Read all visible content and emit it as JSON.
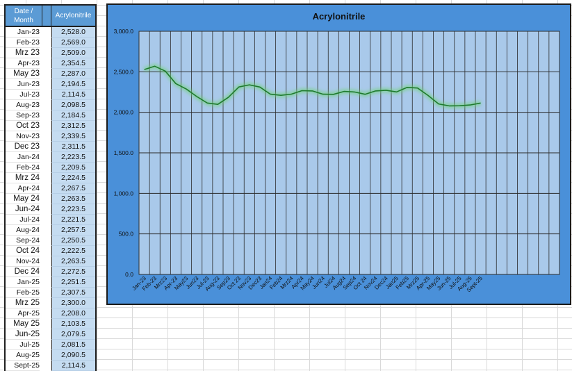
{
  "table": {
    "header_date": "Date /\nMonth",
    "header_value": "Acrylonitrile",
    "rows": [
      {
        "month": "Jan-23",
        "value": "2,528.0"
      },
      {
        "month": "Feb-23",
        "value": "2,569.0"
      },
      {
        "month": "Mrz 23",
        "value": "2,509.0"
      },
      {
        "month": "Apr-23",
        "value": "2,354.5"
      },
      {
        "month": "May 23",
        "value": "2,287.0"
      },
      {
        "month": "Jun-23",
        "value": "2,194.5"
      },
      {
        "month": "Jul-23",
        "value": "2,114.5"
      },
      {
        "month": "Aug-23",
        "value": "2,098.5"
      },
      {
        "month": "Sep-23",
        "value": "2,184.5"
      },
      {
        "month": "Oct 23",
        "value": "2,312.5"
      },
      {
        "month": "Nov-23",
        "value": "2,339.5"
      },
      {
        "month": "Dec 23",
        "value": "2,311.5"
      },
      {
        "month": "Jan-24",
        "value": "2,223.5"
      },
      {
        "month": "Feb-24",
        "value": "2,209.5"
      },
      {
        "month": "Mrz 24",
        "value": "2,224.5"
      },
      {
        "month": "Apr-24",
        "value": "2,267.5"
      },
      {
        "month": "May 24",
        "value": "2,263.5"
      },
      {
        "month": "Jun-24",
        "value": "2,223.5"
      },
      {
        "month": "Jul-24",
        "value": "2,221.5"
      },
      {
        "month": "Aug-24",
        "value": "2,257.5"
      },
      {
        "month": "Sep-24",
        "value": "2,250.5"
      },
      {
        "month": "Oct 24",
        "value": "2,222.5"
      },
      {
        "month": "Nov-24",
        "value": "2,263.5"
      },
      {
        "month": "Dec 24",
        "value": "2,272.5"
      },
      {
        "month": "Jan-25",
        "value": "2,251.5"
      },
      {
        "month": "Feb-25",
        "value": "2,307.5"
      },
      {
        "month": "Mrz 25",
        "value": "2,300.0"
      },
      {
        "month": "Apr-25",
        "value": "2,208.0"
      },
      {
        "month": "May 25",
        "value": "2,103.5"
      },
      {
        "month": "Jun-25",
        "value": "2,079.5"
      },
      {
        "month": "Jul-25",
        "value": "2,081.5"
      },
      {
        "month": "Aug-25",
        "value": "2,090.5"
      },
      {
        "month": "Sept-25",
        "value": "2,114.5"
      }
    ]
  },
  "colors": {
    "chart_background": "#4a90d9",
    "plot_area": "#a9c9ea",
    "line": "#1e7a2e",
    "table_header": "#5b9bd5",
    "table_values": "#c5dcf1"
  },
  "chart_data": {
    "type": "line",
    "title": "Acrylonitrile",
    "categories": [
      "Jan-23",
      "Feb-23",
      "Mrz23",
      "Apr-23",
      "May23",
      "Jun23",
      "Jul-23",
      "Aug-23",
      "Sep23",
      "Oct 23",
      "Nov23",
      "Dec23",
      "Jan24",
      "Feb24",
      "Mrz24",
      "Apr24",
      "May24",
      "Jun24",
      "Jul24",
      "Aug24",
      "Sep24",
      "Oct 24",
      "Nov24",
      "Dec24",
      "Jan25",
      "Feb25",
      "Mrz25",
      "Apr-25",
      "May25",
      "Jun-25",
      "Jul-25",
      "Aug-25",
      "Sept-25"
    ],
    "series": [
      {
        "values": [
          2528.0,
          2569.0,
          2509.0,
          2354.5,
          2287.0,
          2194.5,
          2114.5,
          2098.5,
          2184.5,
          2312.5,
          2339.5,
          2311.5,
          2223.5,
          2209.5,
          2224.5,
          2267.5,
          2263.5,
          2223.5,
          2221.5,
          2257.5,
          2250.5,
          2222.5,
          2263.5,
          2272.5,
          2251.5,
          2307.5,
          2300.0,
          2208.0,
          2103.5,
          2079.5,
          2081.5,
          2090.5,
          2114.5
        ]
      }
    ],
    "total_category_slots": 40,
    "ylim": [
      0,
      3000
    ],
    "yticks": [
      "0.0",
      "500.0",
      "1,000.0",
      "1,500.0",
      "2,000.0",
      "2,500.0",
      "3,000.0"
    ],
    "grid": true,
    "legend": "none"
  }
}
